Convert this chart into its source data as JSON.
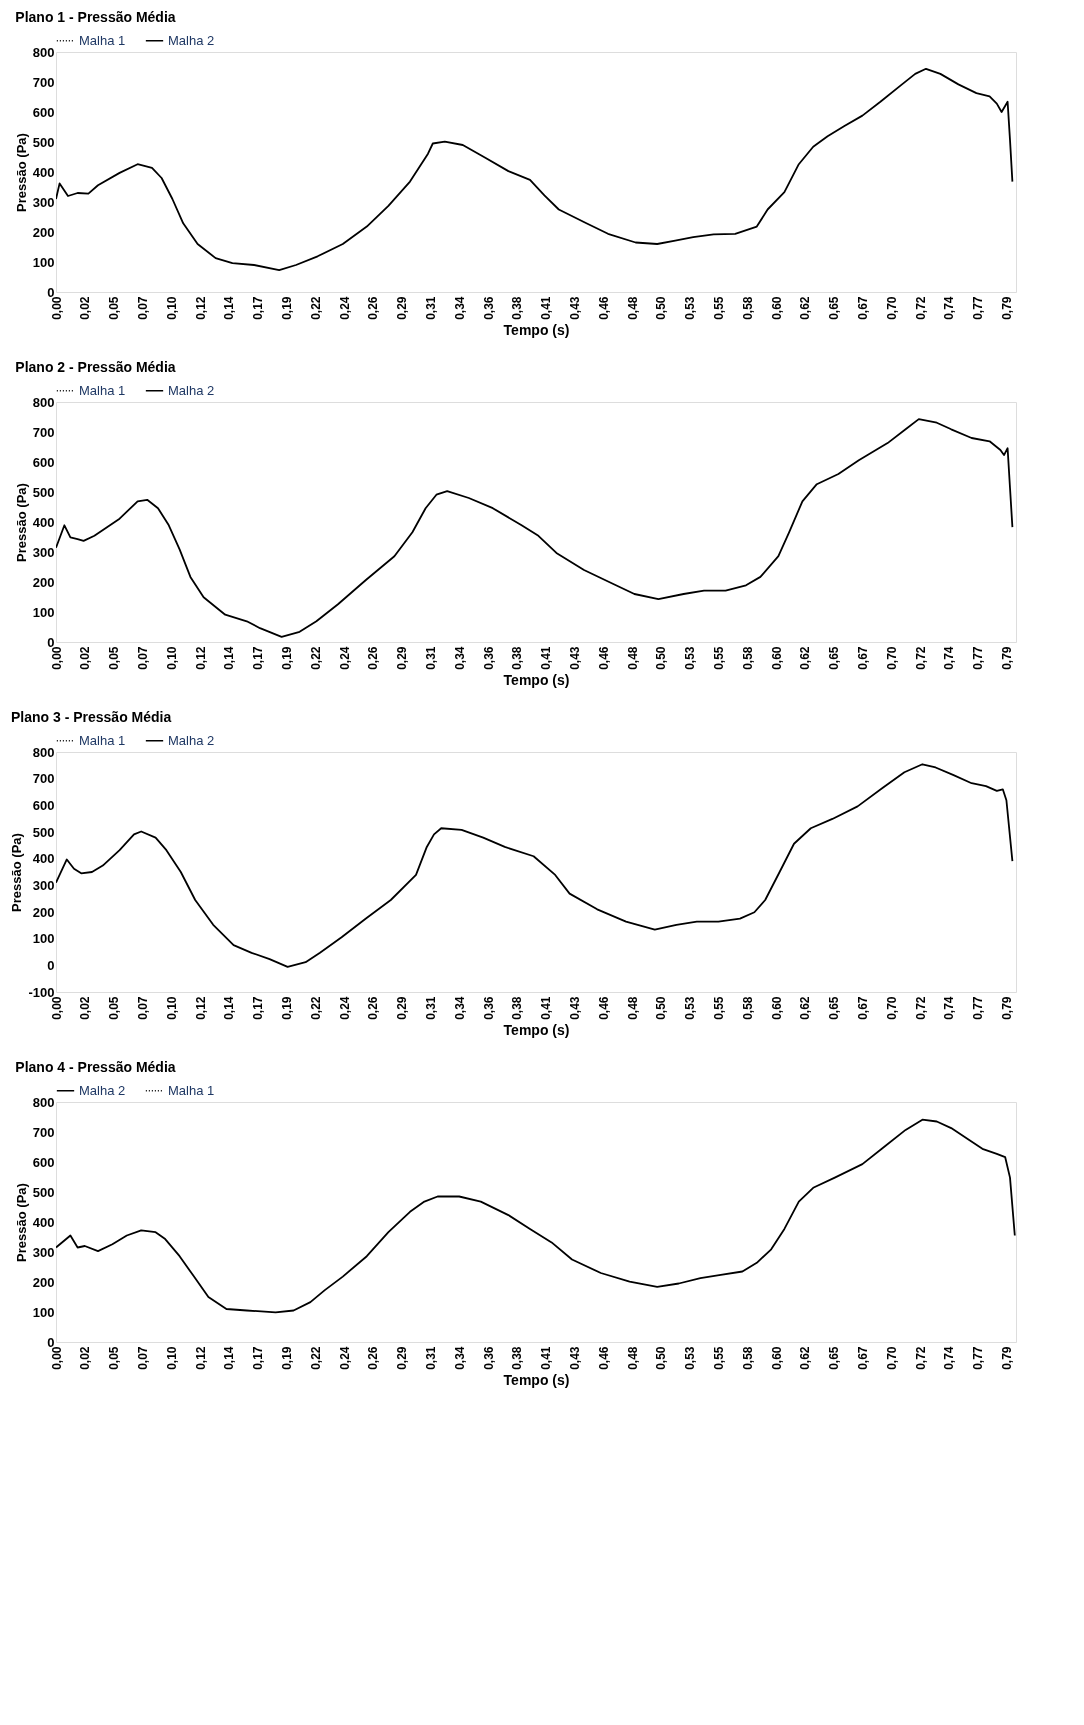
{
  "chart_data": [
    {
      "type": "line",
      "title": "Plano 1 - Pressão Média",
      "xlabel": "Tempo (s)",
      "ylabel": "Pressão (Pa)",
      "legend": "top left",
      "grid": false,
      "x": [
        0,
        0.003,
        0.01,
        0.018,
        0.027,
        0.035,
        0.053,
        0.068,
        0.08,
        0.088,
        0.097,
        0.106,
        0.118,
        0.133,
        0.147,
        0.165,
        0.186,
        0.2,
        0.218,
        0.239,
        0.259,
        0.277,
        0.295,
        0.31,
        0.314,
        0.324,
        0.339,
        0.357,
        0.377,
        0.395,
        0.407,
        0.419,
        0.442,
        0.46,
        0.483,
        0.501,
        0.516,
        0.531,
        0.548,
        0.566,
        0.584,
        0.593,
        0.607,
        0.619,
        0.631,
        0.643,
        0.657,
        0.672,
        0.687,
        0.705,
        0.716,
        0.725,
        0.737,
        0.752,
        0.767,
        0.778,
        0.784,
        0.788,
        0.793,
        0.795,
        0.797
      ],
      "series": [
        {
          "name": "Malha 1",
          "color": "#000000",
          "line_style": "dotted",
          "values": [
            null,
            null,
            null,
            null,
            null,
            null,
            null,
            null,
            null,
            null,
            null,
            null,
            null,
            null,
            null,
            null,
            null,
            null,
            null,
            null,
            null,
            null,
            null,
            null,
            null,
            null,
            null,
            null,
            null,
            null,
            null,
            null,
            null,
            null,
            null,
            null,
            null,
            null,
            null,
            null,
            null,
            null,
            null,
            null,
            null,
            null,
            null,
            null,
            null,
            null,
            null,
            null,
            null,
            null,
            null,
            null,
            null,
            null,
            null,
            null,
            null
          ]
        },
        {
          "name": "Malha 2",
          "color": "#000000",
          "line_style": "solid",
          "values": [
            310,
            362,
            320,
            330,
            328,
            356,
            397,
            426,
            414,
            380,
            310,
            229,
            160,
            113,
            96,
            90,
            73,
            90,
            119,
            160,
            218,
            287,
            368,
            461,
            495,
            501,
            490,
            449,
            403,
            374,
            322,
            275,
            229,
            194,
            165,
            160,
            171,
            183,
            192,
            194,
            218,
            275,
            333,
            426,
            484,
            519,
            553,
            588,
            634,
            692,
            727,
            744,
            727,
            692,
            663,
            652,
            628,
            600,
            634,
            507,
            368
          ]
        }
      ],
      "xlim": [
        0,
        0.8
      ],
      "ylim": [
        0,
        800
      ],
      "yticks": [
        0,
        100,
        200,
        300,
        400,
        500,
        600,
        700,
        800
      ],
      "xticks": [
        {
          "value": 0,
          "label": "0,00"
        },
        {
          "value": 0.024,
          "label": "0,02"
        },
        {
          "value": 0.048,
          "label": "0,05"
        },
        {
          "value": 0.072,
          "label": "0,07"
        },
        {
          "value": 0.096,
          "label": "0,10"
        },
        {
          "value": 0.12,
          "label": "0,12"
        },
        {
          "value": 0.144,
          "label": "0,14"
        },
        {
          "value": 0.168,
          "label": "0,17"
        },
        {
          "value": 0.192,
          "label": "0,19"
        },
        {
          "value": 0.216,
          "label": "0,22"
        },
        {
          "value": 0.24,
          "label": "0,24"
        },
        {
          "value": 0.264,
          "label": "0,26"
        },
        {
          "value": 0.288,
          "label": "0,29"
        },
        {
          "value": 0.312,
          "label": "0,31"
        },
        {
          "value": 0.336,
          "label": "0,34"
        },
        {
          "value": 0.36,
          "label": "0,36"
        },
        {
          "value": 0.384,
          "label": "0,38"
        },
        {
          "value": 0.408,
          "label": "0,41"
        },
        {
          "value": 0.432,
          "label": "0,43"
        },
        {
          "value": 0.456,
          "label": "0,46"
        },
        {
          "value": 0.48,
          "label": "0,48"
        },
        {
          "value": 0.504,
          "label": "0,50"
        },
        {
          "value": 0.528,
          "label": "0,53"
        },
        {
          "value": 0.552,
          "label": "0,55"
        },
        {
          "value": 0.576,
          "label": "0,58"
        },
        {
          "value": 0.6,
          "label": "0,60"
        },
        {
          "value": 0.624,
          "label": "0,62"
        },
        {
          "value": 0.648,
          "label": "0,65"
        },
        {
          "value": 0.672,
          "label": "0,67"
        },
        {
          "value": 0.696,
          "label": "0,70"
        },
        {
          "value": 0.72,
          "label": "0,72"
        },
        {
          "value": 0.744,
          "label": "0,74"
        },
        {
          "value": 0.768,
          "label": "0,77"
        },
        {
          "value": 0.792,
          "label": "0,79"
        }
      ]
    },
    {
      "type": "line",
      "title": "Plano 2 - Pressão Média",
      "xlabel": "Tempo (s)",
      "ylabel": "Pressão (Pa)",
      "legend": "top left",
      "grid": false,
      "x": [
        0,
        0.007,
        0.012,
        0.018,
        0.023,
        0.032,
        0.053,
        0.068,
        0.076,
        0.085,
        0.094,
        0.103,
        0.112,
        0.123,
        0.141,
        0.159,
        0.17,
        0.188,
        0.203,
        0.217,
        0.235,
        0.258,
        0.282,
        0.297,
        0.308,
        0.317,
        0.326,
        0.344,
        0.364,
        0.388,
        0.402,
        0.417,
        0.44,
        0.464,
        0.482,
        0.502,
        0.523,
        0.54,
        0.558,
        0.575,
        0.587,
        0.602,
        0.611,
        0.622,
        0.634,
        0.652,
        0.669,
        0.693,
        0.708,
        0.719,
        0.734,
        0.746,
        0.763,
        0.778,
        0.787,
        0.79,
        0.793,
        0.795,
        0.797
      ],
      "series": [
        {
          "name": "Malha 1",
          "color": "#000000",
          "line_style": "dotted",
          "values": [
            null,
            null,
            null,
            null,
            null,
            null,
            null,
            null,
            null,
            null,
            null,
            null,
            null,
            null,
            null,
            null,
            null,
            null,
            null,
            null,
            null,
            null,
            null,
            null,
            null,
            null,
            null,
            null,
            null,
            null,
            null,
            null,
            null,
            null,
            null,
            null,
            null,
            null,
            null,
            null,
            null,
            null,
            null,
            null,
            null,
            null,
            null,
            null,
            null,
            null,
            null,
            null,
            null,
            null,
            null,
            null,
            null,
            null,
            null
          ]
        },
        {
          "name": "Malha 2",
          "color": "#000000",
          "line_style": "solid",
          "values": [
            314,
            389,
            349,
            343,
            337,
            354,
            411,
            469,
            474,
            446,
            389,
            309,
            217,
            149,
            91,
            69,
            46,
            17,
            34,
            69,
            126,
            206,
            286,
            366,
            446,
            491,
            503,
            480,
            446,
            389,
            354,
            297,
            240,
            194,
            160,
            143,
            160,
            171,
            171,
            189,
            217,
            286,
            366,
            469,
            526,
            560,
            606,
            663,
            709,
            743,
            731,
            709,
            680,
            669,
            640,
            623,
            646,
            514,
            383
          ]
        }
      ],
      "xlim": [
        0,
        0.8
      ],
      "ylim": [
        0,
        800
      ],
      "yticks": [
        0,
        100,
        200,
        300,
        400,
        500,
        600,
        700,
        800
      ],
      "xticks": [
        {
          "value": 0,
          "label": "0,00"
        },
        {
          "value": 0.024,
          "label": "0,02"
        },
        {
          "value": 0.048,
          "label": "0,05"
        },
        {
          "value": 0.072,
          "label": "0,07"
        },
        {
          "value": 0.096,
          "label": "0,10"
        },
        {
          "value": 0.12,
          "label": "0,12"
        },
        {
          "value": 0.144,
          "label": "0,14"
        },
        {
          "value": 0.168,
          "label": "0,17"
        },
        {
          "value": 0.192,
          "label": "0,19"
        },
        {
          "value": 0.216,
          "label": "0,22"
        },
        {
          "value": 0.24,
          "label": "0,24"
        },
        {
          "value": 0.264,
          "label": "0,26"
        },
        {
          "value": 0.288,
          "label": "0,29"
        },
        {
          "value": 0.312,
          "label": "0,31"
        },
        {
          "value": 0.336,
          "label": "0,34"
        },
        {
          "value": 0.36,
          "label": "0,36"
        },
        {
          "value": 0.384,
          "label": "0,38"
        },
        {
          "value": 0.408,
          "label": "0,41"
        },
        {
          "value": 0.432,
          "label": "0,43"
        },
        {
          "value": 0.456,
          "label": "0,46"
        },
        {
          "value": 0.48,
          "label": "0,48"
        },
        {
          "value": 0.504,
          "label": "0,50"
        },
        {
          "value": 0.528,
          "label": "0,53"
        },
        {
          "value": 0.552,
          "label": "0,55"
        },
        {
          "value": 0.576,
          "label": "0,58"
        },
        {
          "value": 0.6,
          "label": "0,60"
        },
        {
          "value": 0.624,
          "label": "0,62"
        },
        {
          "value": 0.648,
          "label": "0,65"
        },
        {
          "value": 0.672,
          "label": "0,67"
        },
        {
          "value": 0.696,
          "label": "0,70"
        },
        {
          "value": 0.72,
          "label": "0,72"
        },
        {
          "value": 0.744,
          "label": "0,74"
        },
        {
          "value": 0.768,
          "label": "0,77"
        },
        {
          "value": 0.792,
          "label": "0,79"
        }
      ]
    },
    {
      "type": "line",
      "title": "Plano 3 - Pressão Média",
      "xlabel": "Tempo (s)",
      "ylabel": "Pressão (Pa)",
      "legend": "top left",
      "grid": false,
      "x": [
        0,
        0.009,
        0.015,
        0.021,
        0.03,
        0.039,
        0.053,
        0.065,
        0.071,
        0.083,
        0.092,
        0.104,
        0.116,
        0.131,
        0.148,
        0.163,
        0.178,
        0.193,
        0.208,
        0.22,
        0.238,
        0.258,
        0.279,
        0.3,
        0.309,
        0.315,
        0.321,
        0.338,
        0.356,
        0.374,
        0.398,
        0.416,
        0.428,
        0.451,
        0.475,
        0.499,
        0.517,
        0.534,
        0.552,
        0.57,
        0.582,
        0.591,
        0.603,
        0.615,
        0.629,
        0.647,
        0.668,
        0.689,
        0.707,
        0.722,
        0.733,
        0.748,
        0.763,
        0.775,
        0.784,
        0.789,
        0.792,
        0.797
      ],
      "series": [
        {
          "name": "Malha 1",
          "color": "#000000",
          "line_style": "dotted",
          "values": [
            null,
            null,
            null,
            null,
            null,
            null,
            null,
            null,
            null,
            null,
            null,
            null,
            null,
            null,
            null,
            null,
            null,
            null,
            null,
            null,
            null,
            null,
            null,
            null,
            null,
            null,
            null,
            null,
            null,
            null,
            null,
            null,
            null,
            null,
            null,
            null,
            null,
            null,
            null,
            null,
            null,
            null,
            null,
            null,
            null,
            null,
            null,
            null,
            null,
            null,
            null,
            null,
            null,
            null,
            null,
            null,
            null,
            null
          ]
        },
        {
          "name": "Malha 2",
          "color": "#000000",
          "line_style": "solid",
          "values": [
            310,
            397,
            362,
            345,
            350,
            374,
            432,
            491,
            502,
            479,
            432,
            350,
            245,
            152,
            76,
            47,
            23,
            -6,
            12,
            47,
            105,
            175,
            245,
            339,
            444,
            491,
            514,
            508,
            479,
            444,
            409,
            339,
            269,
            210,
            164,
            134,
            152,
            164,
            164,
            175,
            199,
            245,
            350,
            456,
            514,
            549,
            596,
            666,
            724,
            754,
            742,
            713,
            683,
            672,
            654,
            660,
            619,
            391
          ]
        }
      ],
      "xlim": [
        0,
        0.8
      ],
      "ylim": [
        -100,
        800
      ],
      "yticks": [
        -100,
        0,
        100,
        200,
        300,
        400,
        500,
        600,
        700,
        800
      ],
      "xticks": [
        {
          "value": 0,
          "label": "0,00"
        },
        {
          "value": 0.024,
          "label": "0,02"
        },
        {
          "value": 0.048,
          "label": "0,05"
        },
        {
          "value": 0.072,
          "label": "0,07"
        },
        {
          "value": 0.096,
          "label": "0,10"
        },
        {
          "value": 0.12,
          "label": "0,12"
        },
        {
          "value": 0.144,
          "label": "0,14"
        },
        {
          "value": 0.168,
          "label": "0,17"
        },
        {
          "value": 0.192,
          "label": "0,19"
        },
        {
          "value": 0.216,
          "label": "0,22"
        },
        {
          "value": 0.24,
          "label": "0,24"
        },
        {
          "value": 0.264,
          "label": "0,26"
        },
        {
          "value": 0.288,
          "label": "0,29"
        },
        {
          "value": 0.312,
          "label": "0,31"
        },
        {
          "value": 0.336,
          "label": "0,34"
        },
        {
          "value": 0.36,
          "label": "0,36"
        },
        {
          "value": 0.384,
          "label": "0,38"
        },
        {
          "value": 0.408,
          "label": "0,41"
        },
        {
          "value": 0.432,
          "label": "0,43"
        },
        {
          "value": 0.456,
          "label": "0,46"
        },
        {
          "value": 0.48,
          "label": "0,48"
        },
        {
          "value": 0.504,
          "label": "0,50"
        },
        {
          "value": 0.528,
          "label": "0,53"
        },
        {
          "value": 0.552,
          "label": "0,55"
        },
        {
          "value": 0.576,
          "label": "0,58"
        },
        {
          "value": 0.6,
          "label": "0,60"
        },
        {
          "value": 0.624,
          "label": "0,62"
        },
        {
          "value": 0.648,
          "label": "0,65"
        },
        {
          "value": 0.672,
          "label": "0,67"
        },
        {
          "value": 0.696,
          "label": "0,70"
        },
        {
          "value": 0.72,
          "label": "0,72"
        },
        {
          "value": 0.744,
          "label": "0,74"
        },
        {
          "value": 0.768,
          "label": "0,77"
        },
        {
          "value": 0.792,
          "label": "0,79"
        }
      ]
    },
    {
      "type": "line",
      "title": "Plano 4 - Pressão Média",
      "xlabel": "Tempo (s)",
      "ylabel": "Pressão (Pa)",
      "legend": "top left",
      "grid": false,
      "x": [
        0,
        0.012,
        0.018,
        0.024,
        0.035,
        0.047,
        0.059,
        0.071,
        0.083,
        0.091,
        0.103,
        0.115,
        0.127,
        0.142,
        0.159,
        0.183,
        0.198,
        0.212,
        0.224,
        0.239,
        0.259,
        0.277,
        0.295,
        0.307,
        0.318,
        0.336,
        0.354,
        0.377,
        0.395,
        0.413,
        0.43,
        0.454,
        0.478,
        0.501,
        0.519,
        0.537,
        0.554,
        0.572,
        0.584,
        0.596,
        0.607,
        0.619,
        0.631,
        0.649,
        0.672,
        0.69,
        0.708,
        0.722,
        0.734,
        0.746,
        0.761,
        0.772,
        0.784,
        0.791,
        0.795,
        0.799
      ],
      "series": [
        {
          "name": "Malha 2",
          "color": "#000000",
          "line_style": "solid",
          "values": [
            315,
            355,
            315,
            320,
            303,
            326,
            355,
            372,
            366,
            343,
            286,
            218,
            150,
            110,
            105,
            99,
            105,
            133,
            173,
            218,
            286,
            366,
            434,
            468,
            485,
            485,
            468,
            423,
            377,
            332,
            275,
            230,
            201,
            184,
            195,
            213,
            224,
            235,
            264,
            309,
            377,
            468,
            514,
            548,
            593,
            650,
            707,
            741,
            735,
            713,
            673,
            644,
            627,
            616,
            548,
            355
          ]
        },
        {
          "name": "Malha 1",
          "color": "#000000",
          "line_style": "dotted",
          "values": [
            null,
            null,
            null,
            null,
            null,
            null,
            null,
            null,
            null,
            null,
            null,
            null,
            null,
            null,
            null,
            null,
            null,
            null,
            null,
            null,
            null,
            null,
            null,
            null,
            null,
            null,
            null,
            null,
            null,
            null,
            null,
            null,
            null,
            null,
            null,
            null,
            null,
            null,
            null,
            null,
            null,
            null,
            null,
            null,
            null,
            null,
            null,
            null,
            null,
            null,
            null,
            null,
            null,
            null,
            null,
            null
          ]
        }
      ],
      "xlim": [
        0,
        0.8
      ],
      "ylim": [
        0,
        800
      ],
      "yticks": [
        0,
        100,
        200,
        300,
        400,
        500,
        600,
        700,
        800
      ],
      "xticks": [
        {
          "value": 0,
          "label": "0,00"
        },
        {
          "value": 0.024,
          "label": "0,02"
        },
        {
          "value": 0.048,
          "label": "0,05"
        },
        {
          "value": 0.072,
          "label": "0,07"
        },
        {
          "value": 0.096,
          "label": "0,10"
        },
        {
          "value": 0.12,
          "label": "0,12"
        },
        {
          "value": 0.144,
          "label": "0,14"
        },
        {
          "value": 0.168,
          "label": "0,17"
        },
        {
          "value": 0.192,
          "label": "0,19"
        },
        {
          "value": 0.216,
          "label": "0,22"
        },
        {
          "value": 0.24,
          "label": "0,24"
        },
        {
          "value": 0.264,
          "label": "0,26"
        },
        {
          "value": 0.288,
          "label": "0,29"
        },
        {
          "value": 0.312,
          "label": "0,31"
        },
        {
          "value": 0.336,
          "label": "0,34"
        },
        {
          "value": 0.36,
          "label": "0,36"
        },
        {
          "value": 0.384,
          "label": "0,38"
        },
        {
          "value": 0.408,
          "label": "0,41"
        },
        {
          "value": 0.432,
          "label": "0,43"
        },
        {
          "value": 0.456,
          "label": "0,46"
        },
        {
          "value": 0.48,
          "label": "0,48"
        },
        {
          "value": 0.504,
          "label": "0,50"
        },
        {
          "value": 0.528,
          "label": "0,53"
        },
        {
          "value": 0.552,
          "label": "0,55"
        },
        {
          "value": 0.576,
          "label": "0,58"
        },
        {
          "value": 0.6,
          "label": "0,60"
        },
        {
          "value": 0.624,
          "label": "0,62"
        },
        {
          "value": 0.648,
          "label": "0,65"
        },
        {
          "value": 0.672,
          "label": "0,67"
        },
        {
          "value": 0.696,
          "label": "0,70"
        },
        {
          "value": 0.72,
          "label": "0,72"
        },
        {
          "value": 0.744,
          "label": "0,74"
        },
        {
          "value": 0.768,
          "label": "0,77"
        },
        {
          "value": 0.792,
          "label": "0,79"
        }
      ]
    }
  ]
}
